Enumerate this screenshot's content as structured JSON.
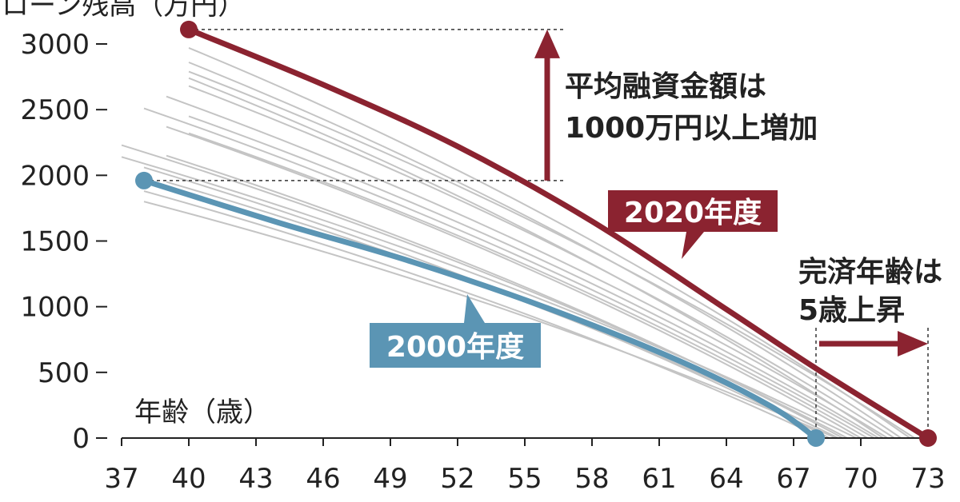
{
  "chart_data": {
    "type": "line",
    "ylabel": "ローン残高（万円）",
    "xlabel": "年齢（歳）",
    "xlim": [
      37,
      73
    ],
    "ylim": [
      0,
      3000
    ],
    "x_ticks": [
      37,
      40,
      43,
      46,
      49,
      52,
      55,
      58,
      61,
      64,
      67,
      70,
      73
    ],
    "y_ticks": [
      0,
      500,
      1000,
      1500,
      2000,
      2500,
      3000
    ],
    "series": [
      {
        "name": "2020年度",
        "color": "#8b2330",
        "x": [
          40,
          46,
          52,
          58,
          64,
          68,
          73
        ],
        "y": [
          3110,
          2690,
          2220,
          1650,
          980,
          530,
          0
        ]
      },
      {
        "name": "2000年度",
        "color": "#5b95b4",
        "x": [
          38,
          44,
          50,
          56,
          62,
          66,
          68
        ],
        "y": [
          1960,
          1640,
          1340,
          990,
          580,
          240,
          0
        ]
      }
    ],
    "intermediate_color": "#c4c4c4",
    "intermediate_years": [
      {
        "start": [
          37,
          2230
        ],
        "end": [
          69.4,
          0
        ]
      },
      {
        "start": [
          37,
          2140
        ],
        "end": [
          69.8,
          0
        ]
      },
      {
        "start": [
          38,
          2060
        ],
        "end": [
          68.6,
          0
        ]
      },
      {
        "start": [
          38,
          2510
        ],
        "end": [
          70.6,
          0
        ]
      },
      {
        "start": [
          39,
          2370
        ],
        "end": [
          70.0,
          0
        ]
      },
      {
        "start": [
          38,
          1880
        ],
        "end": [
          68.3,
          0
        ]
      },
      {
        "start": [
          38,
          1800
        ],
        "end": [
          68.9,
          0
        ]
      },
      {
        "start": [
          39,
          2600
        ],
        "end": [
          71.2,
          0
        ]
      },
      {
        "start": [
          39,
          2150
        ],
        "end": [
          69.2,
          0
        ]
      },
      {
        "start": [
          40,
          2680
        ],
        "end": [
          71.5,
          0
        ]
      },
      {
        "start": [
          40,
          2860
        ],
        "end": [
          71.8,
          0
        ]
      },
      {
        "start": [
          40,
          2450
        ],
        "end": [
          70.8,
          0
        ]
      },
      {
        "start": [
          40,
          2970
        ],
        "end": [
          72.2,
          0
        ]
      },
      {
        "start": [
          40,
          2790
        ],
        "end": [
          72.4,
          0
        ]
      },
      {
        "start": [
          39,
          1950
        ],
        "end": [
          69.0,
          0
        ]
      },
      {
        "start": [
          40,
          2320
        ],
        "end": [
          70.3,
          0
        ]
      },
      {
        "start": [
          40,
          2740
        ],
        "end": [
          71.0,
          0
        ]
      }
    ],
    "annotations": {
      "increase_line1": "平均融資金額は",
      "increase_line2": "1000万円以上増加",
      "age_line1": "完済年齢は",
      "age_line2": "5歳上昇",
      "label_2020": "2020年度",
      "label_2000": "2000年度",
      "badge_2020_color": "#8b2330",
      "badge_2000_color": "#5b95b4"
    }
  }
}
